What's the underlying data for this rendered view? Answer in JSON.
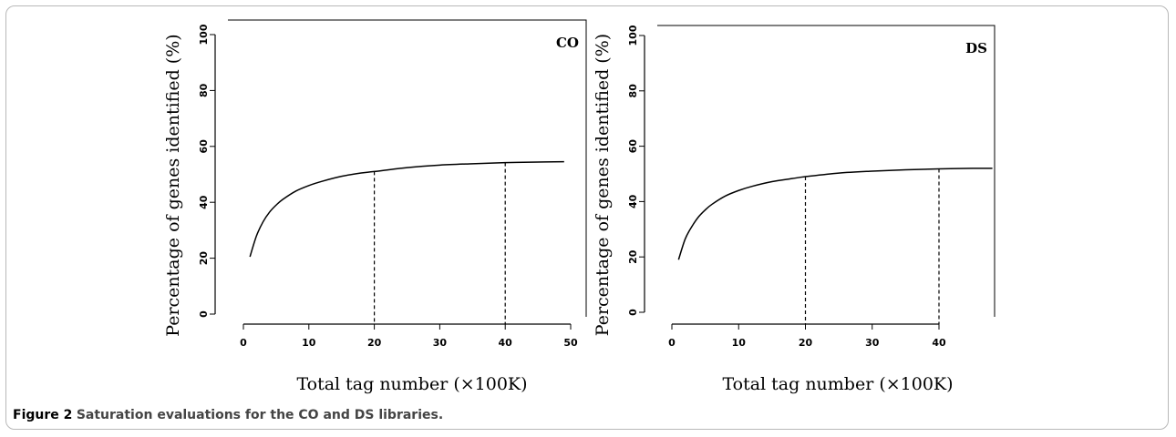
{
  "caption": {
    "label": "Figure 2",
    "text": "Saturation evaluations for the CO and DS libraries."
  },
  "chart_data": [
    {
      "type": "line",
      "panel_label": "CO",
      "xlabel": "Total tag number (×100K)",
      "ylabel": "Percentage of genes identified (%)",
      "xlim": [
        0,
        50
      ],
      "ylim": [
        0,
        100
      ],
      "xticks": [
        0,
        10,
        20,
        30,
        40,
        50
      ],
      "yticks": [
        0,
        20,
        40,
        60,
        80,
        100
      ],
      "grid": false,
      "x": [
        1,
        2,
        3,
        4,
        5,
        6,
        8,
        10,
        12,
        15,
        18,
        20,
        25,
        30,
        35,
        40,
        45,
        49
      ],
      "y": [
        20.5,
        28,
        33,
        36.5,
        39,
        41,
        44,
        46,
        47.5,
        49.3,
        50.5,
        51,
        52.4,
        53.3,
        53.8,
        54.2,
        54.4,
        54.5
      ],
      "guides": [
        {
          "x": 20,
          "y": 51
        },
        {
          "x": 40,
          "y": 54.2
        }
      ]
    },
    {
      "type": "line",
      "panel_label": "DS",
      "xlabel": "Total tag number (×100K)",
      "ylabel": "Percentage of genes identified (%)",
      "xlim": [
        0,
        48
      ],
      "ylim": [
        0,
        100
      ],
      "xticks": [
        0,
        10,
        20,
        30,
        40
      ],
      "yticks": [
        0,
        20,
        40,
        60,
        80,
        100
      ],
      "grid": false,
      "x": [
        1,
        2,
        3,
        4,
        5,
        6,
        8,
        10,
        12,
        15,
        18,
        20,
        25,
        30,
        35,
        40,
        45,
        48
      ],
      "y": [
        19,
        26.5,
        31,
        34.5,
        37,
        39,
        42,
        44,
        45.5,
        47.2,
        48.3,
        49,
        50.3,
        51,
        51.5,
        51.8,
        52,
        52
      ]
    }
  ]
}
